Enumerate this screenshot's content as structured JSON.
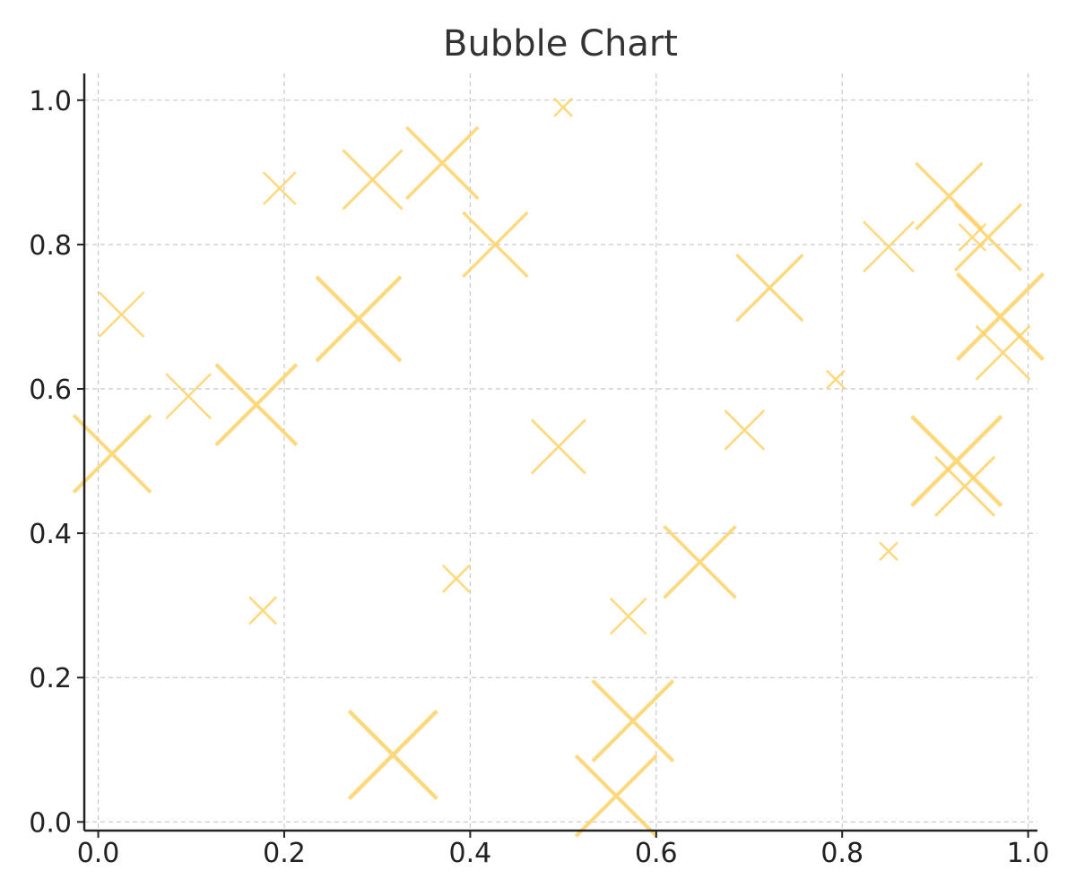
{
  "chart_data": {
    "type": "scatter",
    "title": "Bubble Chart",
    "xlabel": "",
    "ylabel": "",
    "xlim": [
      -0.015,
      1.01
    ],
    "ylim": [
      -0.012,
      1.037
    ],
    "xticks": [
      "0.0",
      "0.2",
      "0.4",
      "0.6",
      "0.8",
      "1.0"
    ],
    "yticks": [
      "0.0",
      "0.2",
      "0.4",
      "0.6",
      "0.8",
      "1.0"
    ],
    "grid": true,
    "marker": "x",
    "color": "#fdd267",
    "points": [
      {
        "x": 0.015,
        "y": 0.51,
        "size": 43
      },
      {
        "x": 0.025,
        "y": 0.703,
        "size": 25
      },
      {
        "x": 0.097,
        "y": 0.59,
        "size": 25
      },
      {
        "x": 0.17,
        "y": 0.578,
        "size": 45
      },
      {
        "x": 0.177,
        "y": 0.293,
        "size": 15
      },
      {
        "x": 0.195,
        "y": 0.878,
        "size": 18
      },
      {
        "x": 0.28,
        "y": 0.697,
        "size": 47
      },
      {
        "x": 0.295,
        "y": 0.89,
        "size": 33
      },
      {
        "x": 0.317,
        "y": 0.093,
        "size": 49
      },
      {
        "x": 0.37,
        "y": 0.913,
        "size": 40
      },
      {
        "x": 0.385,
        "y": 0.337,
        "size": 15
      },
      {
        "x": 0.427,
        "y": 0.8,
        "size": 36
      },
      {
        "x": 0.495,
        "y": 0.52,
        "size": 30
      },
      {
        "x": 0.5,
        "y": 0.99,
        "size": 10
      },
      {
        "x": 0.557,
        "y": 0.036,
        "size": 45
      },
      {
        "x": 0.57,
        "y": 0.285,
        "size": 20
      },
      {
        "x": 0.575,
        "y": 0.14,
        "size": 45
      },
      {
        "x": 0.647,
        "y": 0.36,
        "size": 40
      },
      {
        "x": 0.695,
        "y": 0.543,
        "size": 22
      },
      {
        "x": 0.722,
        "y": 0.74,
        "size": 37
      },
      {
        "x": 0.793,
        "y": 0.613,
        "size": 10
      },
      {
        "x": 0.85,
        "y": 0.797,
        "size": 28
      },
      {
        "x": 0.85,
        "y": 0.375,
        "size": 10
      },
      {
        "x": 0.915,
        "y": 0.867,
        "size": 37
      },
      {
        "x": 0.923,
        "y": 0.5,
        "size": 50
      },
      {
        "x": 0.932,
        "y": 0.465,
        "size": 33
      },
      {
        "x": 0.94,
        "y": 0.81,
        "size": 15
      },
      {
        "x": 0.957,
        "y": 0.81,
        "size": 37
      },
      {
        "x": 0.97,
        "y": 0.7,
        "size": 48
      },
      {
        "x": 0.973,
        "y": 0.65,
        "size": 30
      }
    ]
  }
}
